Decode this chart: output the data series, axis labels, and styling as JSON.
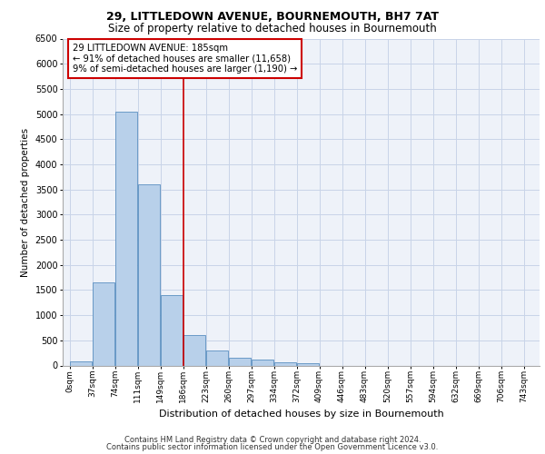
{
  "title1": "29, LITTLEDOWN AVENUE, BOURNEMOUTH, BH7 7AT",
  "title2": "Size of property relative to detached houses in Bournemouth",
  "xlabel": "Distribution of detached houses by size in Bournemouth",
  "ylabel": "Number of detached properties",
  "bar_categories": [
    "0sqm",
    "37sqm",
    "74sqm",
    "111sqm",
    "149sqm",
    "186sqm",
    "223sqm",
    "260sqm",
    "297sqm",
    "334sqm",
    "372sqm",
    "409sqm",
    "446sqm",
    "483sqm",
    "520sqm",
    "557sqm",
    "594sqm",
    "632sqm",
    "669sqm",
    "706sqm",
    "743sqm"
  ],
  "bar_values": [
    75,
    1650,
    5050,
    3600,
    1400,
    610,
    295,
    150,
    110,
    70,
    40,
    0,
    0,
    0,
    0,
    0,
    0,
    0,
    0,
    0,
    0
  ],
  "bar_color": "#b8d0ea",
  "bar_edge_color": "#5a8fc0",
  "property_label": "29 LITTLEDOWN AVENUE: 185sqm",
  "annotation_line1": "← 91% of detached houses are smaller (11,658)",
  "annotation_line2": "9% of semi-detached houses are larger (1,190) →",
  "vline_color": "#cc0000",
  "vline_x": 185,
  "annotation_box_color": "#cc0000",
  "ylim": [
    0,
    6500
  ],
  "yticks": [
    0,
    500,
    1000,
    1500,
    2000,
    2500,
    3000,
    3500,
    4000,
    4500,
    5000,
    5500,
    6000,
    6500
  ],
  "bin_width": 37,
  "footer1": "Contains HM Land Registry data © Crown copyright and database right 2024.",
  "footer2": "Contains public sector information licensed under the Open Government Licence v3.0.",
  "bg_color": "#eef2f9",
  "grid_color": "#c8d4e8"
}
